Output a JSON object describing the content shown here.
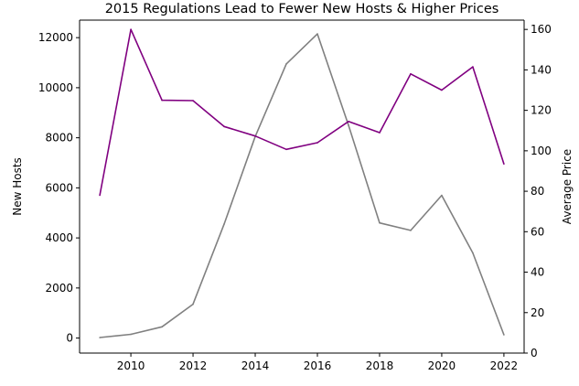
{
  "chart_data": {
    "type": "line",
    "title": "2015 Regulations Lead to Fewer New Hosts & Higher Prices",
    "xlabel": "",
    "ylabel_left": "New Hosts",
    "ylabel_right": "Average Price",
    "x": [
      2009,
      2010,
      2011,
      2012,
      2013,
      2014,
      2015,
      2016,
      2017,
      2018,
      2019,
      2020,
      2021,
      2022
    ],
    "xlim": [
      2008.35,
      2022.65
    ],
    "xticks": [
      2010,
      2012,
      2014,
      2016,
      2018,
      2020,
      2022
    ],
    "ylim_left": [
      -600,
      12700
    ],
    "yticks_left": [
      0,
      2000,
      4000,
      6000,
      8000,
      10000,
      12000
    ],
    "ylim_right": [
      0,
      164.6
    ],
    "yticks_right": [
      0,
      20,
      40,
      60,
      80,
      100,
      120,
      140,
      160
    ],
    "grid": false,
    "legend": "none",
    "series": [
      {
        "axis": "left",
        "color": "#808080",
        "values": [
          20,
          150,
          450,
          1350,
          4550,
          8050,
          10950,
          12150,
          8500,
          4600,
          4300,
          5700,
          3400,
          130
        ]
      },
      {
        "axis": "right",
        "color": "#800080",
        "values": [
          78,
          160,
          125,
          124.8,
          112,
          107.3,
          100.7,
          104,
          114.5,
          109,
          138,
          130,
          141.5,
          93.5
        ]
      }
    ]
  }
}
